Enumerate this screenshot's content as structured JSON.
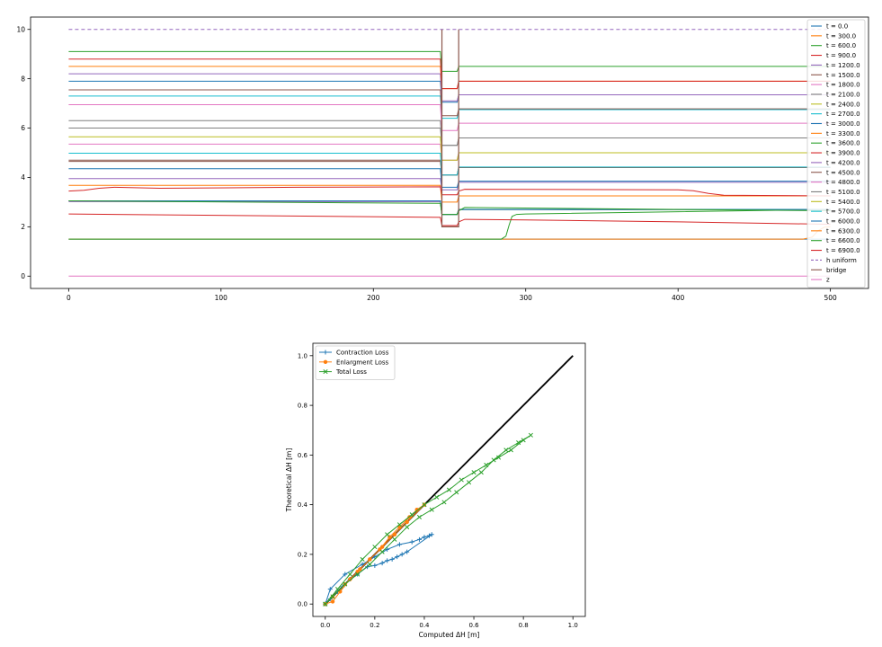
{
  "chart_data": [
    {
      "type": "line",
      "title": "",
      "xlabel": "",
      "ylabel": "",
      "xlim": [
        -25,
        525
      ],
      "ylim": [
        -0.5,
        10.5
      ],
      "xticks": [
        0,
        100,
        200,
        300,
        400,
        500
      ],
      "yticks": [
        0,
        2,
        4,
        6,
        8,
        10
      ],
      "grid": false,
      "legend_position": "right",
      "bridge": {
        "x0": 245,
        "x1": 256,
        "deck_top": 10,
        "deck_bottom": 2
      },
      "series": [
        {
          "name": "t = 0.0",
          "color": "#1f77b4",
          "style": "solid",
          "up": 1.5,
          "bridge": 1.5,
          "down": 1.5
        },
        {
          "name": "t = 300.0",
          "color": "#ff7f0e",
          "style": "solid",
          "up": 1.5,
          "bridge": 1.5,
          "down": 1.5,
          "down_profile": [
            [
              482,
              1.5
            ],
            [
              488,
              1.58
            ],
            [
              492,
              1.85
            ],
            [
              496,
              1.98
            ],
            [
              500,
              2.0
            ]
          ]
        },
        {
          "name": "t = 600.0",
          "color": "#2ca02c",
          "style": "solid",
          "up": 1.5,
          "bridge": 1.5,
          "down": 2.55,
          "down_profile": [
            [
              256,
              1.5
            ],
            [
              284,
              1.5
            ],
            [
              287,
              1.62
            ],
            [
              289,
              2.05
            ],
            [
              291,
              2.42
            ],
            [
              294,
              2.5
            ],
            [
              300,
              2.52
            ],
            [
              500,
              2.7
            ]
          ]
        },
        {
          "name": "t = 900.0",
          "color": "#d62728",
          "style": "solid",
          "up_profile": [
            [
              0,
              2.52
            ],
            [
              244,
              2.38
            ]
          ],
          "bridge": 2.05,
          "down_profile": [
            [
              256,
              2.2
            ],
            [
              260,
              2.3
            ],
            [
              300,
              2.28
            ],
            [
              400,
              2.2
            ],
            [
              500,
              2.1
            ]
          ]
        },
        {
          "name": "t = 1200.0",
          "color": "#9467bd",
          "style": "solid",
          "up": 3.02,
          "bridge": 2.5,
          "down": 2.7
        },
        {
          "name": "t = 1500.0",
          "color": "#8c564b",
          "style": "solid",
          "up": 3.05,
          "bridge": 2.5,
          "down": 2.7
        },
        {
          "name": "t = 1800.0",
          "color": "#e377c2",
          "style": "solid",
          "up": 3.05,
          "bridge": 2.5,
          "down": 2.7
        },
        {
          "name": "t = 2100.0",
          "color": "#7f7f7f",
          "style": "solid",
          "up": 3.05,
          "bridge": 2.5,
          "down": 2.7
        },
        {
          "name": "t = 2400.0",
          "color": "#bcbd22",
          "style": "solid",
          "up": 3.05,
          "bridge": 2.5,
          "down": 2.7
        },
        {
          "name": "t = 2700.0",
          "color": "#17becf",
          "style": "solid",
          "up": 3.05,
          "bridge": 2.5,
          "down": 2.7
        },
        {
          "name": "t = 3000.0",
          "color": "#1f77b4",
          "style": "solid",
          "up": 3.05,
          "bridge": 2.5,
          "down": 2.7
        },
        {
          "name": "t = 3300.0",
          "color": "#ff7f0e",
          "style": "solid",
          "up": 3.68,
          "bridge": 3.0,
          "down": 3.25
        },
        {
          "name": "t = 3600.0",
          "color": "#2ca02c",
          "style": "solid",
          "up_profile": [
            [
              0,
              3.05
            ],
            [
              244,
              2.95
            ]
          ],
          "bridge": 2.5,
          "down_profile": [
            [
              256,
              2.65
            ],
            [
              260,
              2.78
            ],
            [
              500,
              2.65
            ]
          ]
        },
        {
          "name": "t = 3900.0",
          "color": "#d62728",
          "style": "solid",
          "up_profile": [
            [
              0,
              3.45
            ],
            [
              10,
              3.48
            ],
            [
              20,
              3.56
            ],
            [
              30,
              3.6
            ],
            [
              60,
              3.56
            ],
            [
              150,
              3.6
            ],
            [
              244,
              3.62
            ]
          ],
          "bridge": 3.3,
          "down_profile": [
            [
              256,
              3.45
            ],
            [
              260,
              3.52
            ],
            [
              400,
              3.5
            ],
            [
              410,
              3.46
            ],
            [
              420,
              3.35
            ],
            [
              430,
              3.28
            ],
            [
              500,
              3.25
            ]
          ]
        },
        {
          "name": "t = 4200.0",
          "color": "#9467bd",
          "style": "solid",
          "up": 3.95,
          "bridge": 3.5,
          "down": 3.8
        },
        {
          "name": "t = 4500.0",
          "color": "#8c564b",
          "style": "solid",
          "up": 4.65,
          "bridge": 4.1,
          "down": 4.4
        },
        {
          "name": "t = 4800.0",
          "color": "#e377c2",
          "style": "solid",
          "up": 5.35,
          "bridge": 4.7,
          "down": 5.0
        },
        {
          "name": "t = 5100.0",
          "color": "#7f7f7f",
          "style": "solid",
          "up": 6.3,
          "bridge": 5.3,
          "down": 5.6
        },
        {
          "name": "t = 5400.0",
          "color": "#bcbd22",
          "style": "solid",
          "up": 5.65,
          "bridge": 4.7,
          "down": 5.0
        },
        {
          "name": "t = 5700.0",
          "color": "#17becf",
          "style": "solid",
          "up": 4.98,
          "bridge": 4.1,
          "down": 4.42
        },
        {
          "name": "t = 6000.0",
          "color": "#1f77b4",
          "style": "solid",
          "up": 4.35,
          "bridge": 3.6,
          "down": 3.85
        },
        {
          "name": "t = 6300.0",
          "color": "#ff7f0e",
          "style": "solid",
          "up": 8.5,
          "bridge": 7.6,
          "down": 7.9
        },
        {
          "name": "t = 6600.0",
          "color": "#2ca02c",
          "style": "solid",
          "up": 9.1,
          "bridge": 8.3,
          "down": 8.5
        },
        {
          "name": "t = 6900.0",
          "color": "#d62728",
          "style": "solid",
          "up": 8.8,
          "bridge": 7.6,
          "down": 7.9
        },
        {
          "name": "h uniform",
          "color": "#9467bd",
          "style": "dashed",
          "up": 10,
          "bridge": 10,
          "down": 10
        },
        {
          "name": "bridge",
          "color": "#8c564b",
          "style": "solid",
          "kind": "bridge"
        },
        {
          "name": "z",
          "color": "#e377c2",
          "style": "solid",
          "up": 0,
          "bridge": 0,
          "down": 0
        }
      ],
      "extra_profiles": [
        {
          "color": "#1f77b4",
          "up": 7.9,
          "bridge": 7.05,
          "down": 7.35
        },
        {
          "color": "#9467bd",
          "up": 8.2,
          "bridge": 7.1,
          "down": 7.35
        },
        {
          "color": "#17becf",
          "up": 7.3,
          "bridge": 6.4,
          "down": 6.75
        },
        {
          "color": "#8c564b",
          "up": 7.55,
          "bridge": 6.5,
          "down": 6.78
        },
        {
          "color": "#e377c2",
          "up": 6.95,
          "bridge": 5.9,
          "down": 6.2
        },
        {
          "color": "#7f7f7f",
          "up": 6.0,
          "bridge": 5.3,
          "down": 5.6
        },
        {
          "color": "#8c564b",
          "up": 4.7,
          "bridge": 4.1,
          "down": 4.4
        }
      ]
    },
    {
      "type": "line",
      "title": "",
      "xlabel": "Computed ΔH [m]",
      "ylabel": "Theoretical ΔH [m]",
      "xlim": [
        -0.05,
        1.05
      ],
      "ylim": [
        -0.05,
        1.05
      ],
      "xticks": [
        0.0,
        0.2,
        0.4,
        0.6,
        0.8,
        1.0
      ],
      "yticks": [
        0.0,
        0.2,
        0.4,
        0.6,
        0.8,
        1.0
      ],
      "tick_labels": [
        "0.0",
        "0.2",
        "0.4",
        "0.6",
        "0.8",
        "1.0"
      ],
      "grid": false,
      "legend_position": "upper left",
      "reference_line": {
        "x": [
          0,
          1
        ],
        "y": [
          0,
          1
        ],
        "color": "#000000"
      },
      "series": [
        {
          "name": "Contraction Loss",
          "color": "#1f77b4",
          "marker": "plus",
          "x": [
            0.0,
            0.02,
            0.08,
            0.15,
            0.2,
            0.25,
            0.3,
            0.35,
            0.38,
            0.4,
            0.42,
            0.43,
            0.33,
            0.31,
            0.29,
            0.27,
            0.25,
            0.23,
            0.2,
            0.17,
            0.13,
            0.1,
            0.07,
            0.05,
            0.02,
            0.0
          ],
          "y": [
            0.0,
            0.06,
            0.12,
            0.16,
            0.19,
            0.22,
            0.24,
            0.25,
            0.26,
            0.27,
            0.275,
            0.28,
            0.21,
            0.2,
            0.19,
            0.18,
            0.175,
            0.165,
            0.155,
            0.15,
            0.12,
            0.1,
            0.07,
            0.05,
            0.02,
            0.0
          ]
        },
        {
          "name": "Enlargment Loss",
          "color": "#ff7f0e",
          "marker": "circle",
          "x": [
            0.0,
            0.03,
            0.06,
            0.1,
            0.14,
            0.18,
            0.22,
            0.26,
            0.3,
            0.34,
            0.37,
            0.4,
            0.33,
            0.28,
            0.23,
            0.18,
            0.13,
            0.08,
            0.03
          ],
          "y": [
            0.0,
            0.01,
            0.05,
            0.1,
            0.14,
            0.18,
            0.22,
            0.27,
            0.31,
            0.35,
            0.38,
            0.4,
            0.33,
            0.28,
            0.23,
            0.18,
            0.13,
            0.08,
            0.03
          ]
        },
        {
          "name": "Total Loss",
          "color": "#2ca02c",
          "marker": "x",
          "x": [
            0.0,
            0.05,
            0.1,
            0.15,
            0.2,
            0.25,
            0.3,
            0.35,
            0.4,
            0.45,
            0.5,
            0.55,
            0.6,
            0.65,
            0.7,
            0.75,
            0.8,
            0.83,
            0.78,
            0.73,
            0.68,
            0.63,
            0.58,
            0.53,
            0.48,
            0.43,
            0.38,
            0.33,
            0.28,
            0.23,
            0.18,
            0.13,
            0.08,
            0.03,
            0.0
          ],
          "y": [
            0.0,
            0.06,
            0.12,
            0.18,
            0.23,
            0.28,
            0.32,
            0.36,
            0.4,
            0.43,
            0.46,
            0.5,
            0.53,
            0.56,
            0.59,
            0.62,
            0.66,
            0.68,
            0.65,
            0.62,
            0.58,
            0.53,
            0.49,
            0.45,
            0.41,
            0.38,
            0.35,
            0.31,
            0.26,
            0.21,
            0.16,
            0.12,
            0.08,
            0.03,
            0.0
          ]
        }
      ]
    }
  ]
}
